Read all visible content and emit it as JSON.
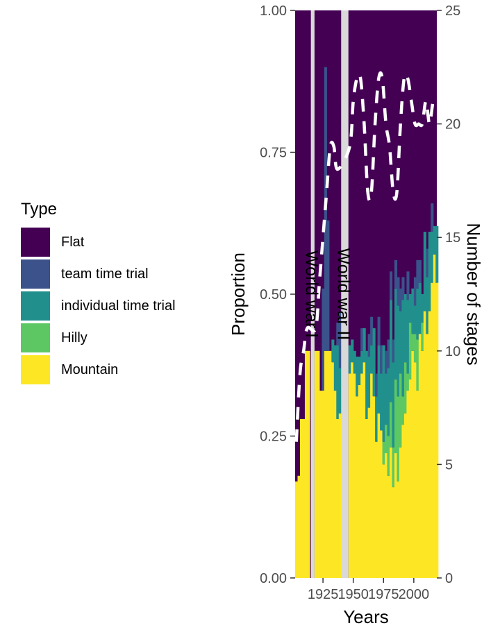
{
  "chart_data": {
    "type": "bar",
    "xlabel": "Years",
    "ylabel": "Proportion",
    "y2label": "Number of stages",
    "ylim": [
      0,
      1
    ],
    "y2lim": [
      0,
      25
    ],
    "xlim": [
      1902,
      2019
    ],
    "x_ticks": [
      1925,
      1950,
      1975,
      2000
    ],
    "y_ticks": [
      "0.00",
      "0.25",
      "0.50",
      "0.75",
      "1.00"
    ],
    "y2_ticks": [
      "0",
      "5",
      "10",
      "15",
      "20",
      "25"
    ],
    "legend": {
      "title": "Type",
      "position": "left",
      "entries": [
        {
          "name": "Flat",
          "color": "#440154"
        },
        {
          "name": "team time trial",
          "color": "#3b528b"
        },
        {
          "name": "individual time trial",
          "color": "#21908c"
        },
        {
          "name": "Hilly",
          "color": "#5dc863"
        },
        {
          "name": "Mountain",
          "color": "#fde725"
        }
      ]
    },
    "annotations": [
      {
        "label": "World war I",
        "x_start": 1915,
        "x_end": 1918
      },
      {
        "label": "World war II",
        "x_start": 1940,
        "x_end": 1946
      }
    ],
    "stage_count_line": {
      "style": "dashed white",
      "years": [
        1903,
        1906,
        1909,
        1912,
        1919,
        1922,
        1925,
        1928,
        1931,
        1934,
        1937,
        1947,
        1950,
        1953,
        1956,
        1959,
        1962,
        1965,
        1968,
        1971,
        1974,
        1977,
        1980,
        1983,
        1986,
        1989,
        1992,
        1995,
        1998,
        2001,
        2004,
        2007,
        2010,
        2013,
        2016,
        2019
      ],
      "stages": [
        6,
        9,
        10,
        11,
        11,
        13,
        15,
        17,
        19,
        19,
        18,
        19,
        21,
        22,
        22,
        20,
        17,
        17,
        20,
        22,
        22,
        20,
        19,
        17,
        17,
        20,
        22,
        22,
        21,
        20,
        20,
        20,
        21,
        20,
        21,
        21
      ]
    },
    "proportions": {
      "years": [
        1903,
        1905,
        1907,
        1909,
        1911,
        1913,
        1919,
        1921,
        1923,
        1925,
        1927,
        1929,
        1931,
        1933,
        1935,
        1937,
        1939,
        1947,
        1949,
        1951,
        1953,
        1955,
        1957,
        1959,
        1961,
        1963,
        1965,
        1967,
        1969,
        1971,
        1973,
        1975,
        1977,
        1979,
        1981,
        1983,
        1985,
        1987,
        1989,
        1991,
        1993,
        1995,
        1997,
        1999,
        2001,
        2003,
        2005,
        2007,
        2009,
        2011,
        2013,
        2015,
        2017,
        2019
      ],
      "mountain": [
        0.17,
        0.18,
        0.28,
        0.28,
        0.4,
        0.4,
        0.4,
        0.4,
        0.33,
        0.33,
        0.4,
        0.4,
        0.4,
        0.38,
        0.33,
        0.28,
        0.29,
        0.36,
        0.38,
        0.36,
        0.32,
        0.34,
        0.36,
        0.38,
        0.28,
        0.3,
        0.36,
        0.32,
        0.24,
        0.29,
        0.26,
        0.2,
        0.22,
        0.18,
        0.23,
        0.16,
        0.22,
        0.17,
        0.23,
        0.27,
        0.29,
        0.33,
        0.35,
        0.4,
        0.38,
        0.33,
        0.43,
        0.4,
        0.47,
        0.43,
        0.47,
        0.52,
        0.57,
        0.52
      ],
      "hilly": [
        0,
        0,
        0,
        0,
        0,
        0,
        0,
        0,
        0,
        0,
        0,
        0,
        0,
        0,
        0,
        0,
        0,
        0,
        0,
        0,
        0,
        0,
        0,
        0,
        0,
        0,
        0,
        0,
        0,
        0,
        0,
        0.04,
        0.05,
        0.07,
        0.08,
        0.07,
        0.13,
        0.15,
        0.13,
        0.05,
        0.09,
        0.03,
        0.1,
        0.03,
        0.05,
        0.09,
        0.0,
        0.05,
        0.0,
        0.0,
        0.0,
        0.0,
        0.0,
        0.0
      ],
      "itt": [
        0,
        0,
        0,
        0,
        0,
        0,
        0,
        0,
        0,
        0,
        0,
        0,
        0,
        0.04,
        0.08,
        0.13,
        0.08,
        0.05,
        0.04,
        0.04,
        0.07,
        0.05,
        0.04,
        0.06,
        0.12,
        0.09,
        0.05,
        0.12,
        0.08,
        0.12,
        0.1,
        0.17,
        0.09,
        0.12,
        0.18,
        0.15,
        0.16,
        0.16,
        0.11,
        0.17,
        0.12,
        0.13,
        0.05,
        0.08,
        0.05,
        0.09,
        0.09,
        0.05,
        0.14,
        0.1,
        0.14,
        0.09,
        0.05,
        0.1
      ],
      "ttt": [
        0,
        0,
        0,
        0,
        0,
        0,
        0,
        0,
        0,
        0.18,
        0.5,
        0.23,
        0,
        0,
        0,
        0.04,
        0.1,
        0,
        0,
        0,
        0,
        0,
        0.04,
        0,
        0,
        0.04,
        0.05,
        0,
        0.04,
        0.05,
        0.05,
        0,
        0.04,
        0.05,
        0.05,
        0.04,
        0.05,
        0.05,
        0.04,
        0.04,
        0.0,
        0.05,
        0.0,
        0.0,
        0.05,
        0.05,
        0.04,
        0.0,
        0.0,
        0.05,
        0.0,
        0.05,
        0.0,
        0.0
      ]
    }
  }
}
